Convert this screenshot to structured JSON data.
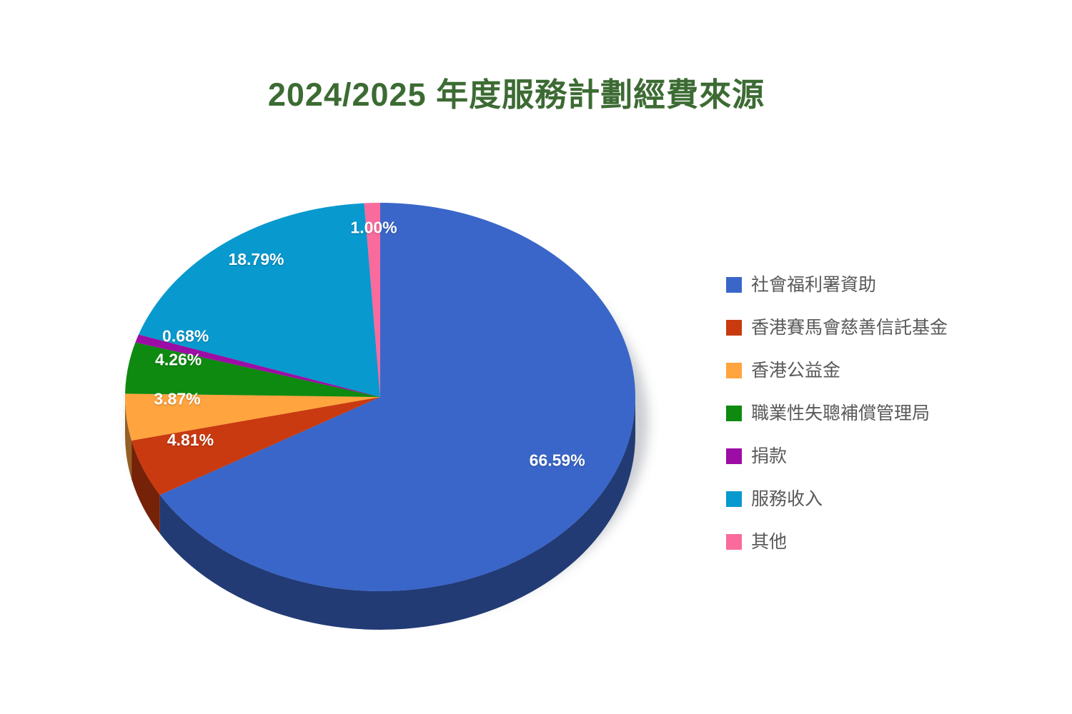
{
  "title": {
    "text": "2024/2025 年度服務計劃經費來源",
    "color": "#3C6B33"
  },
  "chart_data": {
    "type": "pie",
    "style": "3d",
    "title": "2024/2025 年度服務計劃經費來源",
    "categories": [
      "社會福利署資助",
      "香港賽馬會慈善信託基金",
      "香港公益金",
      "職業性失聰補償管理局",
      "捐款",
      "服務收入",
      "其他"
    ],
    "values": [
      66.59,
      4.81,
      3.87,
      4.26,
      0.68,
      18.79,
      1.0
    ],
    "data_labels": [
      "66.59%",
      "4.81%",
      "3.87%",
      "4.26%",
      "0.68%",
      "18.79%",
      "1.00%"
    ],
    "colors": [
      "#3A66C9",
      "#C93A10",
      "#FFA43E",
      "#0E8A10",
      "#9C0DA5",
      "#0899CE",
      "#FA6B9D"
    ],
    "start_angle": 0,
    "direction": "clockwise",
    "legend_position": "right",
    "label_color": "#FFFFFF",
    "grid": false
  },
  "legend": {
    "text_color": "#595959"
  }
}
